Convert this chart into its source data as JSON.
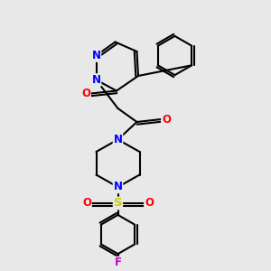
{
  "background_color": "#e8e8e8",
  "bond_color": "#000000",
  "atom_colors": {
    "N": "#0000ff",
    "O": "#ff0000",
    "S": "#cccc00",
    "F": "#cc00cc",
    "C": "#000000"
  },
  "line_width": 1.5,
  "font_size": 8.5
}
